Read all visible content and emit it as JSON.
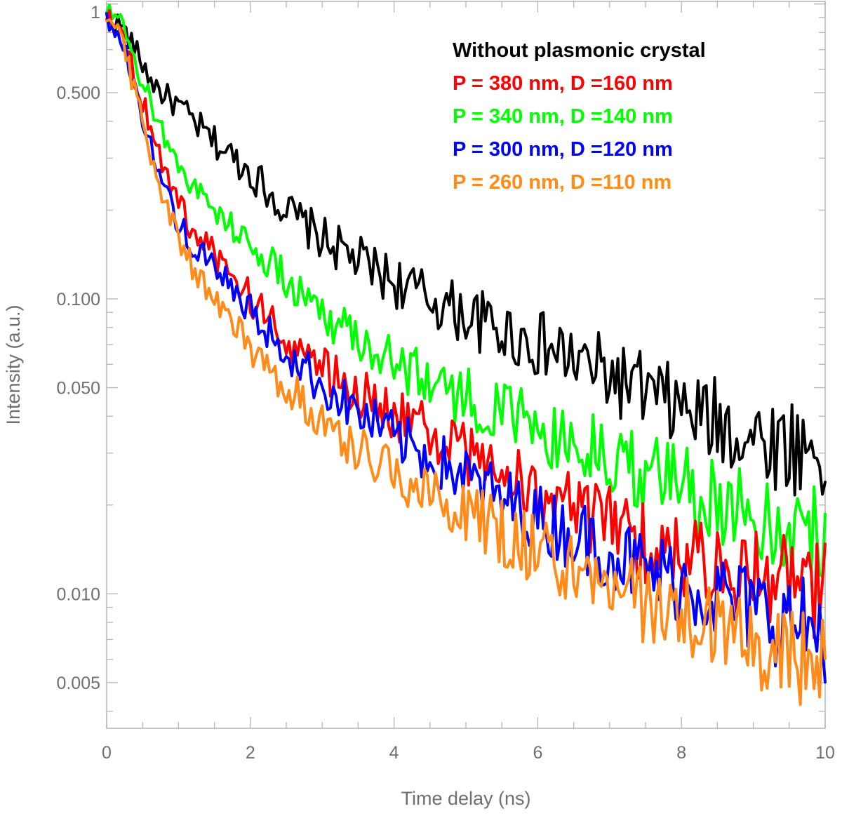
{
  "chart_data": {
    "type": "line",
    "xlabel": "Time delay (ns)",
    "ylabel": "Intensity (a.u.)",
    "xlim": [
      0,
      10
    ],
    "ylim": [
      0.0035,
      1.02
    ],
    "yscale": "log",
    "grid": false,
    "legend_position": "top-right",
    "x_ticks": [
      0,
      2,
      4,
      6,
      8,
      10
    ],
    "x_tick_labels": [
      "0",
      "2",
      "4",
      "6",
      "8",
      "10"
    ],
    "y_ticks": [
      1,
      0.5,
      0.1,
      0.05,
      0.01,
      0.005
    ],
    "y_tick_labels": [
      "1",
      "0.500",
      "0.100",
      "0.050",
      "0.010",
      "0.005"
    ],
    "series": [
      {
        "name": "Without plasmonic crystal",
        "color": "#000000",
        "x": [
          0,
          0.2,
          0.4,
          0.6,
          0.8,
          1,
          1.2,
          1.5,
          2,
          2.5,
          3,
          3.5,
          4,
          4.5,
          5,
          5.5,
          6,
          6.5,
          7,
          7.5,
          8,
          8.5,
          9,
          9.5,
          10
        ],
        "y": [
          0.9,
          0.85,
          0.7,
          0.56,
          0.49,
          0.45,
          0.4,
          0.34,
          0.27,
          0.2,
          0.16,
          0.135,
          0.115,
          0.1,
          0.088,
          0.078,
          0.07,
          0.062,
          0.055,
          0.048,
          0.042,
          0.038,
          0.034,
          0.032,
          0.03
        ]
      },
      {
        "name": "P = 380 nm, D =160 nm",
        "color": "#ff0000",
        "x": [
          0,
          0.2,
          0.4,
          0.6,
          0.8,
          1,
          1.2,
          1.5,
          2,
          2.5,
          3,
          3.5,
          4,
          4.5,
          5,
          5.5,
          6,
          6.5,
          7,
          7.5,
          8,
          8.5,
          9,
          9.5,
          10
        ],
        "y": [
          0.95,
          0.8,
          0.55,
          0.4,
          0.28,
          0.21,
          0.17,
          0.14,
          0.1,
          0.074,
          0.058,
          0.048,
          0.041,
          0.035,
          0.03,
          0.026,
          0.022,
          0.019,
          0.017,
          0.015,
          0.0135,
          0.0125,
          0.0115,
          0.011,
          0.01
        ]
      },
      {
        "name": "P = 340 nm, D =140 nm",
        "color": "#00ff00",
        "x": [
          0,
          0.2,
          0.4,
          0.6,
          0.8,
          1,
          1.2,
          1.5,
          2,
          2.5,
          3,
          3.5,
          4,
          4.5,
          5,
          5.5,
          6,
          6.5,
          7,
          7.5,
          8,
          8.5,
          9,
          9.5,
          10
        ],
        "y": [
          0.95,
          0.85,
          0.62,
          0.47,
          0.36,
          0.29,
          0.24,
          0.2,
          0.155,
          0.115,
          0.09,
          0.074,
          0.062,
          0.053,
          0.046,
          0.041,
          0.036,
          0.032,
          0.029,
          0.026,
          0.023,
          0.021,
          0.019,
          0.017,
          0.016
        ]
      },
      {
        "name": "P = 300 nm, D =120 nm",
        "color": "#0000ff",
        "x": [
          0,
          0.2,
          0.4,
          0.6,
          0.8,
          1,
          1.2,
          1.5,
          2,
          2.5,
          3,
          3.5,
          4,
          4.5,
          5,
          5.5,
          6,
          6.5,
          7,
          7.5,
          8,
          8.5,
          9,
          9.5,
          10
        ],
        "y": [
          0.9,
          0.75,
          0.52,
          0.34,
          0.24,
          0.18,
          0.15,
          0.125,
          0.09,
          0.066,
          0.051,
          0.041,
          0.034,
          0.029,
          0.025,
          0.021,
          0.018,
          0.016,
          0.014,
          0.012,
          0.011,
          0.0098,
          0.0088,
          0.008,
          0.0075
        ]
      },
      {
        "name": "P = 260 nm, D =110 nm",
        "color": "#ff8c1a",
        "x": [
          0,
          0.2,
          0.4,
          0.6,
          0.8,
          1,
          1.2,
          1.5,
          2,
          2.5,
          3,
          3.5,
          4,
          4.5,
          5,
          5.5,
          6,
          6.5,
          7,
          7.5,
          8,
          8.5,
          9,
          9.5,
          10
        ],
        "y": [
          0.95,
          0.78,
          0.5,
          0.32,
          0.21,
          0.16,
          0.13,
          0.1,
          0.068,
          0.05,
          0.039,
          0.031,
          0.026,
          0.022,
          0.019,
          0.016,
          0.014,
          0.012,
          0.0105,
          0.0093,
          0.0083,
          0.0075,
          0.0068,
          0.0062,
          0.0058
        ]
      }
    ]
  }
}
